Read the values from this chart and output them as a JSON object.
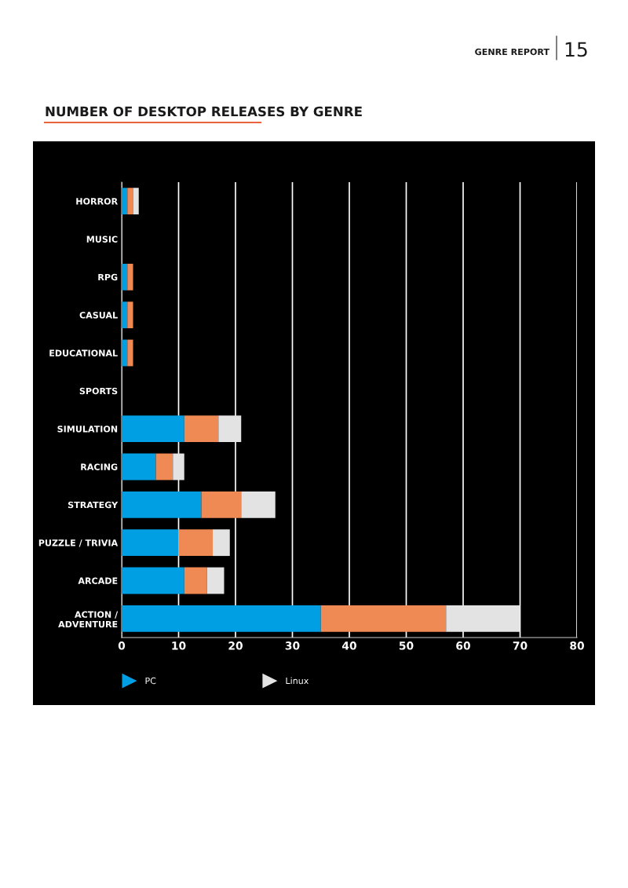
{
  "chart_data": {
    "type": "bar",
    "orientation": "horizontal",
    "stacked": true,
    "title": "NUMBER OF DESKTOP RELEASES BY GENRE",
    "annotations": [
      "GENRE REPORT",
      "15"
    ],
    "categories": [
      "HORROR",
      "MUSIC",
      "RPG",
      "CASUAL",
      "EDUCATIONAL",
      "SPORTS",
      "SIMULATION",
      "RACING",
      "STRATEGY",
      "PUZZLE / TRIVIA",
      "ARCADE",
      "ACTION / ADVENTURE"
    ],
    "series": [
      {
        "name": "PC",
        "color": "#009fe3",
        "values": [
          1,
          0,
          1,
          1,
          1,
          0,
          11,
          6,
          14,
          10,
          11,
          35
        ]
      },
      {
        "color": "#f08a54",
        "values": [
          1,
          0,
          1,
          1,
          1,
          0,
          6,
          3,
          7,
          6,
          4,
          22
        ]
      },
      {
        "name": "Linux",
        "color": "#e3e3e3",
        "values": [
          1,
          0,
          0,
          0,
          0,
          0,
          4,
          2,
          6,
          3,
          3,
          13
        ]
      }
    ],
    "xlim": [
      0,
      80
    ],
    "xticks": [
      0,
      10,
      20,
      30,
      40,
      50,
      60,
      70,
      80
    ],
    "grid": "x",
    "legend": "bottom",
    "marker": "triangle"
  }
}
